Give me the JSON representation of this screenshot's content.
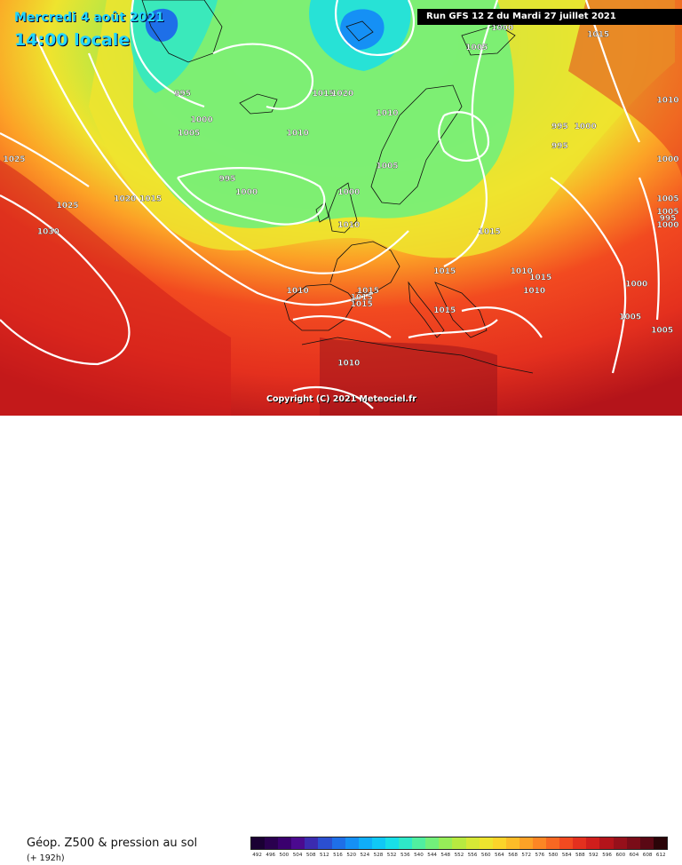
{
  "header": {
    "date": "Mercredi 4 août 2021",
    "time": "14:00 locale",
    "run": "Run GFS 12 Z du Mardi 27 juillet 2021"
  },
  "copyright": "Copyright (C) 2021 Meteociel.fr",
  "legend": {
    "title": "Géop. Z500 & pression au sol",
    "subtitle": "(+ 192h)",
    "scale_values": [
      "492",
      "496",
      "500",
      "504",
      "508",
      "512",
      "516",
      "520",
      "524",
      "528",
      "532",
      "536",
      "540",
      "544",
      "548",
      "552",
      "556",
      "560",
      "564",
      "568",
      "572",
      "576",
      "580",
      "584",
      "588",
      "592",
      "596",
      "600",
      "604",
      "608",
      "612"
    ],
    "scale_colors": [
      "#1a0033",
      "#2a004f",
      "#3a006e",
      "#4b0a8f",
      "#3b2bb0",
      "#2b4fd0",
      "#1e6fe8",
      "#1590f5",
      "#10aef8",
      "#10c8f5",
      "#18dfe8",
      "#2ee8c8",
      "#50efa0",
      "#72f07a",
      "#96ee58",
      "#b8ea40",
      "#d6e836",
      "#eee42e",
      "#fbd42a",
      "#fcbc28",
      "#fca226",
      "#fc8624",
      "#f86822",
      "#f24a20",
      "#e4301e",
      "#d01e1c",
      "#b4141a",
      "#96101a",
      "#7a0c18",
      "#5a0814",
      "#2a0408"
    ]
  },
  "isobars": [
    {
      "label": "995",
      "lng": -27,
      "lat": 66
    },
    {
      "label": "1000",
      "lng": -24,
      "lat": 62
    },
    {
      "label": "1005",
      "lng": -26,
      "lat": 60
    },
    {
      "label": "1000",
      "lng": 23,
      "lat": 76
    },
    {
      "label": "1005",
      "lng": 19,
      "lat": 73
    },
    {
      "label": "1015",
      "lng": 38,
      "lat": 75
    },
    {
      "label": "1015",
      "lng": -5,
      "lat": 66
    },
    {
      "label": "1020",
      "lng": -2,
      "lat": 66
    },
    {
      "label": "1010",
      "lng": 5,
      "lat": 63
    },
    {
      "label": "1010",
      "lng": -9,
      "lat": 60
    },
    {
      "label": "1010",
      "lng": 57,
      "lat": 65
    },
    {
      "label": "995",
      "lng": 32,
      "lat": 61
    },
    {
      "label": "1000",
      "lng": 36,
      "lat": 61
    },
    {
      "label": "995",
      "lng": 32,
      "lat": 58
    },
    {
      "label": "1000",
      "lng": 85,
      "lat": 56
    },
    {
      "label": "1025",
      "lng": -60,
      "lat": 56
    },
    {
      "label": "1020",
      "lng": -36,
      "lat": 50
    },
    {
      "label": "1015",
      "lng": -32,
      "lat": 50
    },
    {
      "label": "995",
      "lng": -20,
      "lat": 53
    },
    {
      "label": "1000",
      "lng": -17,
      "lat": 51
    },
    {
      "label": "1005",
      "lng": 5,
      "lat": 55
    },
    {
      "label": "1000",
      "lng": -1,
      "lat": 51
    },
    {
      "label": "1025",
      "lng": -45,
      "lat": 49
    },
    {
      "label": "1030",
      "lng": -48,
      "lat": 45
    },
    {
      "label": "1010",
      "lng": -1,
      "lat": 46
    },
    {
      "label": "1015",
      "lng": 21,
      "lat": 45
    },
    {
      "label": "1005",
      "lng": 53,
      "lat": 48
    },
    {
      "label": "1005",
      "lng": 65,
      "lat": 50
    },
    {
      "label": "1000",
      "lng": 58,
      "lat": 46
    },
    {
      "label": "995",
      "lng": 66,
      "lat": 47
    },
    {
      "label": "1015",
      "lng": 14,
      "lat": 39
    },
    {
      "label": "1010",
      "lng": 26,
      "lat": 39
    },
    {
      "label": "1015",
      "lng": 29,
      "lat": 38
    },
    {
      "label": "1010",
      "lng": 28,
      "lat": 36
    },
    {
      "label": "1015",
      "lng": 2,
      "lat": 36
    },
    {
      "label": "1015",
      "lng": 1,
      "lat": 35
    },
    {
      "label": "1015",
      "lng": 1,
      "lat": 34
    },
    {
      "label": "1010",
      "lng": -9,
      "lat": 36
    },
    {
      "label": "1015",
      "lng": 14,
      "lat": 33
    },
    {
      "label": "1000",
      "lng": 44,
      "lat": 37
    },
    {
      "label": "1005",
      "lng": 43,
      "lat": 32
    },
    {
      "label": "1005",
      "lng": 48,
      "lat": 30
    },
    {
      "label": "1010",
      "lng": -1,
      "lat": 25
    }
  ]
}
